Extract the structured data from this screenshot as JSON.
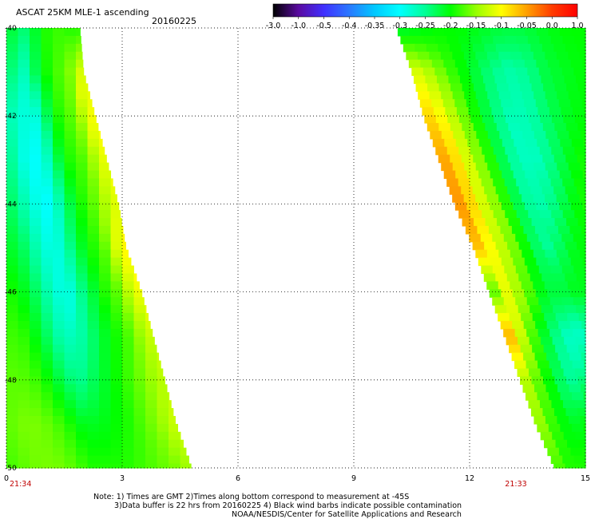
{
  "header": {
    "title": "ASCAT 25KM MLE-1 ascending",
    "date": "20160225"
  },
  "colorbar": {
    "labels": [
      "-3.0",
      "-1.0",
      "-0.5",
      "-0.4",
      "-0.35",
      "-0.3",
      "-0.25",
      "-0.2",
      "-0.15",
      "-0.1",
      "-0.05",
      "0.0",
      "1.0"
    ],
    "colors": [
      "#000000",
      "#5a0aa0",
      "#4030ff",
      "#2a78ff",
      "#00c8ff",
      "#00ffff",
      "#00ff96",
      "#00ff00",
      "#96ff00",
      "#ffff00",
      "#ffa000",
      "#ff3c00",
      "#ff0000"
    ]
  },
  "chart_data": {
    "type": "heatmap",
    "x_ticks": [
      "0",
      "3",
      "6",
      "9",
      "12",
      "15"
    ],
    "y_ticks": [
      "-40",
      "-42",
      "-44",
      "-46",
      "-48",
      "-50"
    ],
    "xlim": [
      0,
      15
    ],
    "ylim": [
      -50,
      -40
    ],
    "grid": true,
    "time_labels": [
      {
        "x": 0,
        "text": "21:34",
        "color": "#c00000"
      },
      {
        "x": 13.2,
        "text": "21:33",
        "color": "#c00000"
      }
    ],
    "swaths": [
      {
        "name": "left",
        "left_edge": [
          [
            -40,
            0
          ],
          [
            -50,
            0
          ]
        ],
        "right_edge": [
          [
            -40,
            1.9
          ],
          [
            -41,
            2.0
          ],
          [
            -42,
            2.3
          ],
          [
            -43,
            2.6
          ],
          [
            -44,
            2.9
          ],
          [
            -45,
            3.1
          ],
          [
            -46,
            3.5
          ],
          [
            -47,
            3.8
          ],
          [
            -48,
            4.1
          ],
          [
            -49,
            4.4
          ],
          [
            -50,
            4.8
          ]
        ],
        "values": [
          [
            -0.22,
            -0.22,
            -0.23,
            -0.24,
            -0.22,
            -0.2,
            -0.19,
            -0.19,
            -0.18,
            -0.19,
            -0.19,
            -0.19
          ],
          [
            -0.25,
            -0.24,
            -0.27,
            -0.26,
            -0.23,
            -0.21,
            -0.19,
            -0.18,
            -0.17,
            -0.16,
            -0.12,
            -0.12
          ],
          [
            -0.26,
            -0.27,
            -0.28,
            -0.3,
            -0.27,
            -0.23,
            -0.2,
            -0.18,
            -0.17,
            -0.15,
            -0.11,
            -0.1
          ],
          [
            -0.24,
            -0.26,
            -0.29,
            -0.3,
            -0.29,
            -0.25,
            -0.21,
            -0.19,
            -0.18,
            -0.16,
            -0.13,
            -0.1
          ],
          [
            -0.23,
            -0.24,
            -0.27,
            -0.29,
            -0.3,
            -0.27,
            -0.23,
            -0.2,
            -0.18,
            -0.16,
            -0.13,
            -0.11
          ],
          [
            -0.21,
            -0.22,
            -0.24,
            -0.27,
            -0.29,
            -0.28,
            -0.24,
            -0.21,
            -0.19,
            -0.17,
            -0.12,
            -0.09
          ],
          [
            -0.19,
            -0.2,
            -0.22,
            -0.25,
            -0.28,
            -0.29,
            -0.25,
            -0.22,
            -0.19,
            -0.17,
            -0.13,
            -0.1
          ],
          [
            -0.18,
            -0.18,
            -0.2,
            -0.23,
            -0.26,
            -0.27,
            -0.25,
            -0.22,
            -0.2,
            -0.18,
            -0.15,
            -0.12
          ],
          [
            -0.17,
            -0.17,
            -0.18,
            -0.2,
            -0.23,
            -0.25,
            -0.23,
            -0.21,
            -0.19,
            -0.17,
            -0.15,
            -0.13
          ],
          [
            -0.17,
            -0.16,
            -0.16,
            -0.17,
            -0.19,
            -0.21,
            -0.21,
            -0.2,
            -0.19,
            -0.17,
            -0.15,
            -0.12
          ],
          [
            -0.18,
            -0.17,
            -0.16,
            -0.16,
            -0.17,
            -0.19,
            -0.19,
            -0.19,
            -0.18,
            -0.17,
            -0.16,
            -0.14
          ]
        ]
      },
      {
        "name": "right",
        "left_edge": [
          [
            -40,
            10.1
          ],
          [
            -41,
            10.5
          ],
          [
            -42,
            10.8
          ],
          [
            -43,
            11.2
          ],
          [
            -44,
            11.6
          ],
          [
            -45,
            12.1
          ],
          [
            -46,
            12.5
          ],
          [
            -47,
            12.9
          ],
          [
            -48,
            13.3
          ],
          [
            -49,
            13.7
          ],
          [
            -50,
            14.2
          ]
        ],
        "right_edge": [
          [
            -40,
            15
          ],
          [
            -50,
            15
          ]
        ],
        "values": [
          [
            -0.22,
            -0.21,
            -0.2,
            -0.2,
            -0.21,
            -0.22,
            -0.22,
            -0.21,
            -0.2,
            -0.2
          ],
          [
            -0.11,
            -0.14,
            -0.18,
            -0.21,
            -0.24,
            -0.26,
            -0.25,
            -0.22,
            -0.21,
            -0.2
          ],
          [
            -0.07,
            -0.1,
            -0.15,
            -0.2,
            -0.24,
            -0.27,
            -0.26,
            -0.23,
            -0.21,
            -0.2
          ],
          [
            -0.04,
            -0.08,
            -0.13,
            -0.18,
            -0.23,
            -0.27,
            -0.27,
            -0.24,
            -0.21,
            -0.19
          ],
          [
            -0.03,
            -0.07,
            -0.12,
            -0.16,
            -0.21,
            -0.25,
            -0.26,
            -0.24,
            -0.21,
            -0.19
          ],
          [
            -0.05,
            -0.09,
            -0.12,
            -0.15,
            -0.19,
            -0.23,
            -0.25,
            -0.23,
            -0.21,
            -0.2
          ],
          [
            -0.25,
            -0.1,
            -0.12,
            -0.15,
            -0.18,
            -0.21,
            -0.22,
            -0.22,
            -0.21,
            -0.21
          ],
          [
            -0.03,
            -0.08,
            -0.13,
            -0.17,
            -0.2,
            -0.23,
            -0.25,
            -0.27,
            -0.28,
            -0.26
          ],
          [
            -0.12,
            -0.14,
            -0.16,
            -0.18,
            -0.2,
            -0.22,
            -0.24,
            -0.25,
            -0.25,
            -0.23
          ],
          [
            -0.13,
            -0.15,
            -0.17,
            -0.18,
            -0.19,
            -0.2,
            -0.21,
            -0.21,
            -0.21,
            -0.2
          ],
          [
            -0.16,
            -0.17,
            -0.18,
            -0.19,
            -0.19,
            -0.19,
            -0.19,
            -0.19,
            -0.19,
            -0.19
          ]
        ]
      }
    ]
  },
  "notes": {
    "line1": "Note: 1) Times are GMT 2)Times along bottom correspond to measurement at -45S",
    "line2": "3)Data buffer is 22 hrs from 20160225 4) Black wind barbs indicate possible contamination",
    "line3": "NOAA/NESDIS/Center for Satellite Applications and Research"
  }
}
